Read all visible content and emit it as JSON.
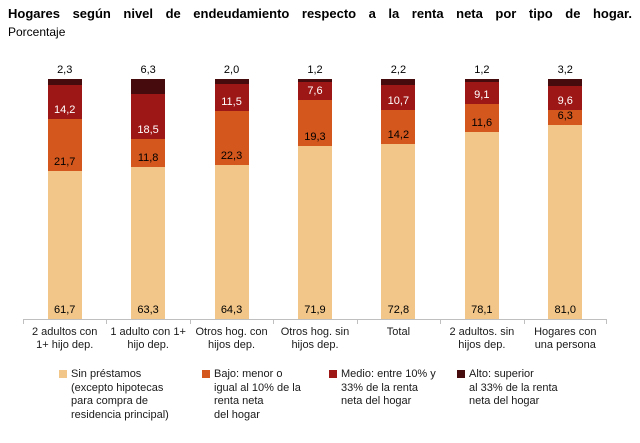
{
  "chart_data": {
    "type": "bar",
    "stacked": true,
    "orientation": "vertical",
    "title": "Hogares según nivel de endeudamiento respecto a la renta neta por tipo de hogar.",
    "subtitle": "Porcentaje",
    "ylim": [
      0,
      100
    ],
    "grid": false,
    "legend_position": "bottom",
    "decimal_separator": ",",
    "categories": [
      "2 adultos con\n1+ hijo dep.",
      "1 adulto con 1+\nhijo dep.",
      "Otros hog. con\nhijos dep.",
      "Otros hog. sin\nhijos dep.",
      "Total",
      "2 adultos. sin\nhijos dep.",
      "Hogares con\nuna persona"
    ],
    "series": [
      {
        "name": "Sin préstamos (excepto hipotecas para compra de residencia principal)",
        "legend_label": "Sin préstamos\n(excepto hipotecas\npara compra de\nresidencia principal)",
        "color": "#F2C689",
        "label_color": "#000000",
        "label_position": "inside-bottom",
        "values": [
          61.7,
          63.3,
          64.3,
          71.9,
          72.8,
          78.1,
          81.0
        ]
      },
      {
        "name": "Bajo: menor o igual al 10% de la renta neta del hogar",
        "legend_label": "Bajo: menor o\nigual al 10% de la\nrenta neta\ndel hogar",
        "color": "#D4571D",
        "label_color": "#000000",
        "label_position": "inside-bottom",
        "values": [
          21.7,
          11.8,
          22.3,
          19.3,
          14.2,
          11.6,
          6.3
        ]
      },
      {
        "name": "Medio: entre 10% y 33% de la renta neta del hogar",
        "legend_label": "Medio: entre 10% y\n33% de la renta\nneta del hogar",
        "color": "#9E1717",
        "label_color": "#FFFFFF",
        "label_position": "inside-bottom",
        "values": [
          14.2,
          18.5,
          11.5,
          7.6,
          10.7,
          9.1,
          9.6
        ]
      },
      {
        "name": "Alto: superior al 33% de la renta neta del hogar",
        "legend_label": "Alto: superior\nal 33% de la renta\nneta del hogar",
        "color": "#460B0C",
        "label_color": "#000000",
        "label_position": "outside-top",
        "values": [
          2.3,
          6.3,
          2.0,
          1.2,
          2.2,
          1.2,
          3.2
        ]
      }
    ],
    "axis_line_color": "#BFBFBF"
  }
}
